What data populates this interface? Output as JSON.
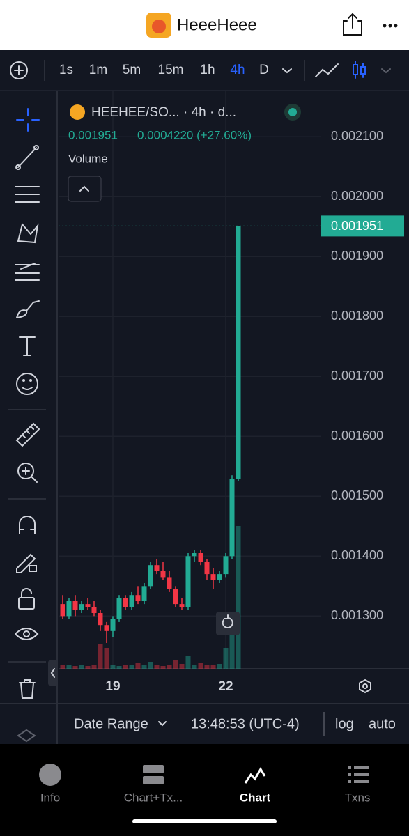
{
  "header": {
    "title": "HeeeHeee"
  },
  "toolbar": {
    "intervals": [
      "1s",
      "1m",
      "5m",
      "15m",
      "1h",
      "4h",
      "D"
    ],
    "selected": "4h"
  },
  "legend": {
    "symbol": "HEEHEE/SO... · 4h · d...",
    "price": "0.001951",
    "change": "0.0004220 (+27.60%)",
    "volume": "Volume"
  },
  "chart_data": {
    "type": "candlestick",
    "categories": [
      null,
      null,
      null,
      null,
      null,
      null,
      null,
      null,
      "19",
      null,
      null,
      null,
      null,
      null,
      null,
      null,
      null,
      null,
      null,
      null,
      null,
      null,
      null,
      null,
      null,
      null,
      "22",
      null,
      null
    ],
    "open": [
      0.00132,
      0.0013,
      0.001325,
      0.00131,
      0.00132,
      0.001315,
      0.001305,
      0.001285,
      0.001275,
      0.001295,
      0.00133,
      0.001315,
      0.001335,
      0.001325,
      0.00135,
      0.001385,
      0.001375,
      0.001365,
      0.001345,
      0.00132,
      0.001315,
      0.0014,
      0.001405,
      0.00139,
      0.00137,
      0.00136,
      0.00137,
      0.0014,
      0.001529
    ],
    "high": [
      0.001335,
      0.00133,
      0.001335,
      0.001325,
      0.00133,
      0.001325,
      0.00131,
      0.00129,
      0.0013,
      0.001335,
      0.001335,
      0.00134,
      0.00135,
      0.001355,
      0.00139,
      0.001395,
      0.00139,
      0.001375,
      0.00135,
      0.00133,
      0.001405,
      0.00141,
      0.00141,
      0.001395,
      0.00138,
      0.001375,
      0.001405,
      0.001535,
      0.001951
    ],
    "low": [
      0.001295,
      0.001295,
      0.0013,
      0.001305,
      0.00131,
      0.0013,
      0.001275,
      0.001255,
      0.001265,
      0.00129,
      0.00131,
      0.00131,
      0.00132,
      0.00132,
      0.001345,
      0.00137,
      0.00136,
      0.00134,
      0.001315,
      0.00131,
      0.00131,
      0.00139,
      0.001385,
      0.00136,
      0.001345,
      0.001355,
      0.001365,
      0.001395,
      0.001525
    ],
    "close": [
      0.0013,
      0.001325,
      0.00131,
      0.00132,
      0.001315,
      0.001305,
      0.001285,
      0.001275,
      0.001295,
      0.00133,
      0.001315,
      0.001335,
      0.001325,
      0.00135,
      0.001385,
      0.001375,
      0.001365,
      0.001345,
      0.00132,
      0.001315,
      0.0014,
      0.001405,
      0.00139,
      0.00137,
      0.00136,
      0.00137,
      0.0014,
      0.001529,
      0.001951
    ],
    "volume": [
      6,
      5,
      4,
      5,
      4,
      6,
      35,
      30,
      5,
      4,
      6,
      5,
      8,
      6,
      10,
      5,
      4,
      6,
      12,
      7,
      18,
      6,
      8,
      5,
      6,
      7,
      30,
      60,
      205
    ],
    "up_color": "#22ab94",
    "down_color": "#f23645",
    "ylim": [
      0.001212,
      0.002177
    ],
    "yticks": [
      {
        "value": 0.0013,
        "label": "0.001300"
      },
      {
        "value": 0.0014,
        "label": "0.001400"
      },
      {
        "value": 0.0015,
        "label": "0.001500"
      },
      {
        "value": 0.0016,
        "label": "0.001600"
      },
      {
        "value": 0.0017,
        "label": "0.001700"
      },
      {
        "value": 0.0018,
        "label": "0.001800"
      },
      {
        "value": 0.0019,
        "label": "0.001900"
      },
      {
        "value": 0.002,
        "label": "0.002000"
      },
      {
        "value": 0.0021,
        "label": "0.002100"
      }
    ],
    "grid": true
  },
  "bottom_bar": {
    "range": "Date Range",
    "time": "13:48:53 (UTC-4)",
    "log": "log",
    "auto": "auto"
  },
  "tabs": [
    "Info",
    "Chart+Tx...",
    "Chart",
    "Txns"
  ]
}
